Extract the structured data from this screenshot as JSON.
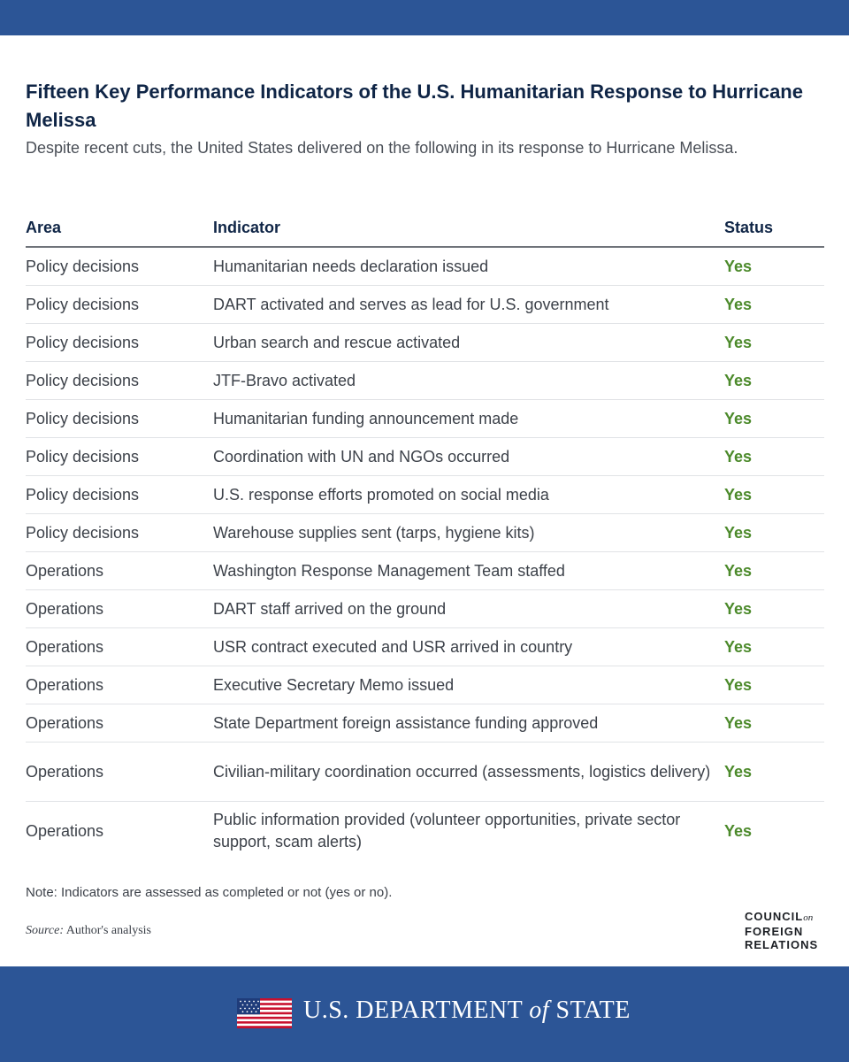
{
  "title": "Fifteen Key Performance Indicators of the U.S. Humanitarian Response to Hurricane Melissa",
  "subtitle": "Despite recent cuts, the United States delivered on the following in its response to Hurricane Melissa.",
  "table": {
    "headers": {
      "area": "Area",
      "indicator": "Indicator",
      "status": "Status"
    },
    "rows": [
      {
        "area": "Policy decisions",
        "indicator": "Humanitarian needs declaration issued",
        "status": "Yes"
      },
      {
        "area": "Policy decisions",
        "indicator": "DART activated and serves as lead for U.S. government",
        "status": "Yes"
      },
      {
        "area": "Policy decisions",
        "indicator": "Urban search and rescue activated",
        "status": "Yes"
      },
      {
        "area": "Policy decisions",
        "indicator": "JTF-Bravo activated",
        "status": "Yes"
      },
      {
        "area": "Policy decisions",
        "indicator": "Humanitarian funding announcement made",
        "status": "Yes"
      },
      {
        "area": "Policy decisions",
        "indicator": "Coordination with UN and NGOs occurred",
        "status": "Yes"
      },
      {
        "area": "Policy decisions",
        "indicator": "U.S. response efforts promoted on social media",
        "status": "Yes"
      },
      {
        "area": "Policy decisions",
        "indicator": "Warehouse supplies sent (tarps, hygiene kits)",
        "status": "Yes"
      },
      {
        "area": "Operations",
        "indicator": "Washington Response Management Team staffed",
        "status": "Yes"
      },
      {
        "area": "Operations",
        "indicator": "DART staff arrived on the ground",
        "status": "Yes"
      },
      {
        "area": "Operations",
        "indicator": "USR contract executed and USR arrived in country",
        "status": "Yes"
      },
      {
        "area": "Operations",
        "indicator": "Executive Secretary Memo issued",
        "status": "Yes"
      },
      {
        "area": "Operations",
        "indicator": "State Department foreign assistance funding approved",
        "status": "Yes"
      },
      {
        "area": "Operations",
        "indicator": "Civilian-military coordination occurred (assessments, logistics delivery)",
        "status": "Yes"
      },
      {
        "area": "Operations",
        "indicator": "Public information provided (volunteer opportunities, private sector support, scam alerts)",
        "status": "Yes"
      }
    ]
  },
  "note": "Note: Indicators are assessed as completed or not (yes or no).",
  "source": {
    "label": "Source:",
    "text": "Author's analysis"
  },
  "logo": {
    "line1": "COUNCIL",
    "on": "on",
    "line2": "FOREIGN",
    "line3": "RELATIONS"
  },
  "footer": {
    "dept_prefix": "U.S. DEPARTMENT",
    "dept_of": "of",
    "dept_suffix": "STATE"
  },
  "colors": {
    "brand_blue": "#2c5596",
    "yes_green": "#4c8a2b",
    "title_navy": "#0f2546"
  }
}
